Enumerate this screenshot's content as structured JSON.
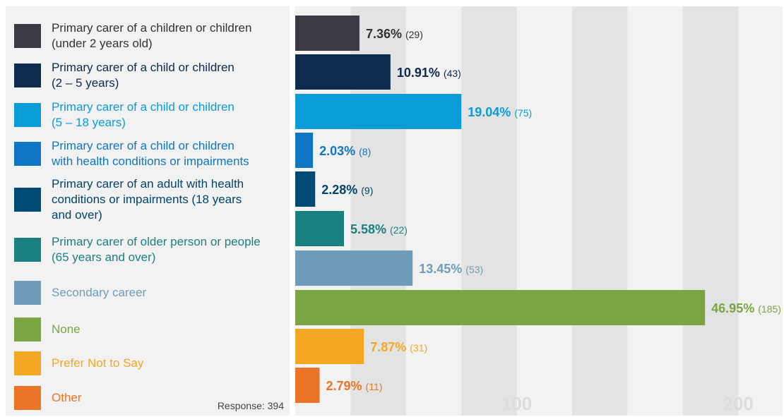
{
  "legend": {
    "items": [
      {
        "label": "Primary carer of a children or children\n(under 2 years old)",
        "color": "#3a3a44",
        "text_color": "#333333"
      },
      {
        "label": "Primary carer of a child or children\n(2 – 5 years)",
        "color": "#0e2a4e",
        "text_color": "#0e2a4e"
      },
      {
        "label": "Primary carer of a child or children\n(5 – 18 years)",
        "color": "#0a9bd9",
        "text_color": "#0a9bd9"
      },
      {
        "label": "Primary carer of a child or children\nwith health conditions or impairments",
        "color": "#0f76c4",
        "text_color": "#0f76c4"
      },
      {
        "label": "Primary carer of an adult with health\nconditions or impairments (18 years\nand over)",
        "color": "#004a76",
        "text_color": "#00436b"
      },
      {
        "label": "Primary carer of older person or people\n(65 years and over)",
        "color": "#1b8080",
        "text_color": "#1b8080"
      },
      {
        "label": "Secondary career",
        "color": "#6f9cba",
        "text_color": "#6f9cba"
      },
      {
        "label": "None",
        "color": "#7ba443",
        "text_color": "#7ba443"
      },
      {
        "label": "Prefer Not to Say",
        "color": "#f3a722",
        "text_color": "#f3a722"
      },
      {
        "label": "Other",
        "color": "#ec7426",
        "text_color": "#ec7426"
      }
    ],
    "response_text": "Response: 394"
  },
  "chart_data": {
    "type": "bar",
    "orientation": "horizontal",
    "categories": [
      "Primary carer of a children or children (under 2 years old)",
      "Primary carer of a child or children (2 – 5 years)",
      "Primary carer of a child or children (5 – 18 years)",
      "Primary carer of a child or children with health conditions or impairments",
      "Primary carer of an adult with health conditions or impairments (18 years and over)",
      "Primary carer of older person or people (65 years and over)",
      "Secondary career",
      "None",
      "Prefer Not to Say",
      "Other"
    ],
    "values": [
      29,
      43,
      75,
      8,
      9,
      22,
      53,
      185,
      31,
      11
    ],
    "percent_labels": [
      "7.36%",
      "10.91%",
      "19.04%",
      "2.03%",
      "2.28%",
      "5.58%",
      "13.45%",
      "46.95%",
      "7.87%",
      "2.79%"
    ],
    "count_labels": [
      "(29)",
      "(43)",
      "(75)",
      "(8)",
      "(9)",
      "(22)",
      "(53)",
      "(185)",
      "(31)",
      "(11)"
    ],
    "tick_labels": [
      "100",
      "200"
    ],
    "ticks": [
      100,
      200
    ],
    "xlim": [
      0,
      225
    ],
    "grid": true
  }
}
